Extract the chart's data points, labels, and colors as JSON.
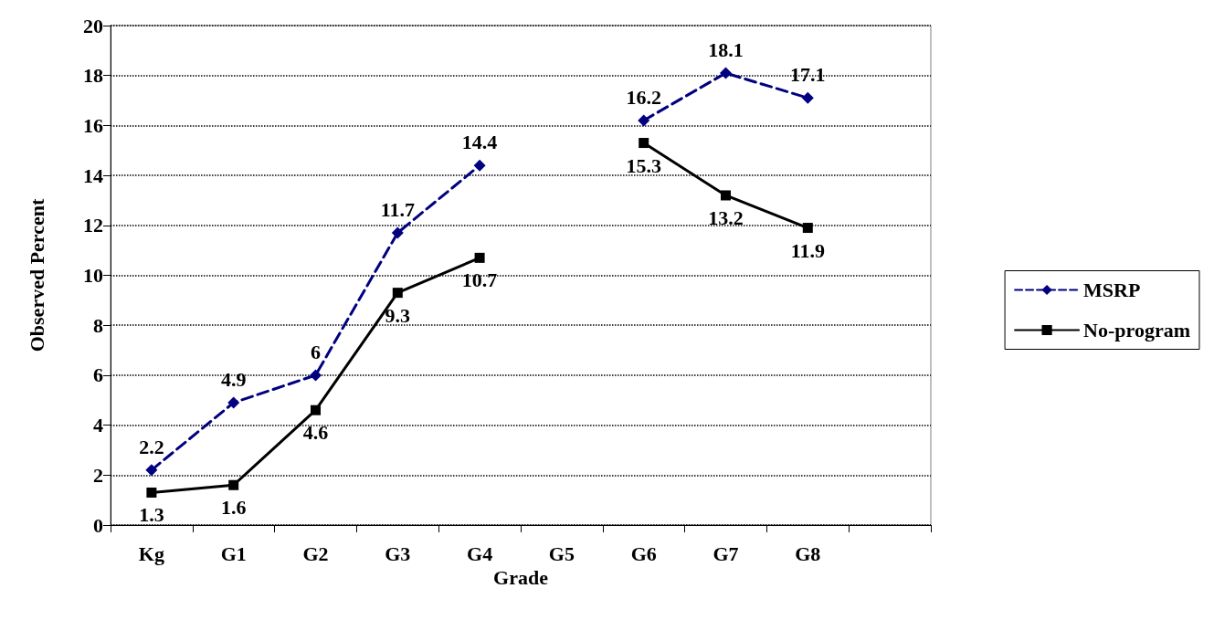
{
  "chart_data": {
    "type": "line",
    "xlabel": "Grade",
    "ylabel": "Observed Percent",
    "categories": [
      "Kg",
      "G1",
      "G2",
      "G3",
      "G4",
      "G5",
      "G6",
      "G7",
      "G8",
      null
    ],
    "series": [
      {
        "name": "MSRP",
        "color": "#000080",
        "marker": "diamond",
        "line_style": "dashed",
        "values": [
          2.2,
          4.9,
          6,
          11.7,
          14.4,
          null,
          16.2,
          18.1,
          17.1,
          null
        ]
      },
      {
        "name": "No-program",
        "color": "#000000",
        "marker": "square",
        "line_style": "solid",
        "values": [
          1.3,
          1.6,
          4.6,
          9.3,
          10.7,
          null,
          15.3,
          13.2,
          11.9,
          null
        ]
      }
    ],
    "ylim": [
      0,
      20
    ],
    "yticks": [
      0,
      2,
      4,
      6,
      8,
      10,
      12,
      14,
      16,
      18,
      20
    ],
    "grid": "y",
    "legend": "right",
    "data_labels": true
  }
}
